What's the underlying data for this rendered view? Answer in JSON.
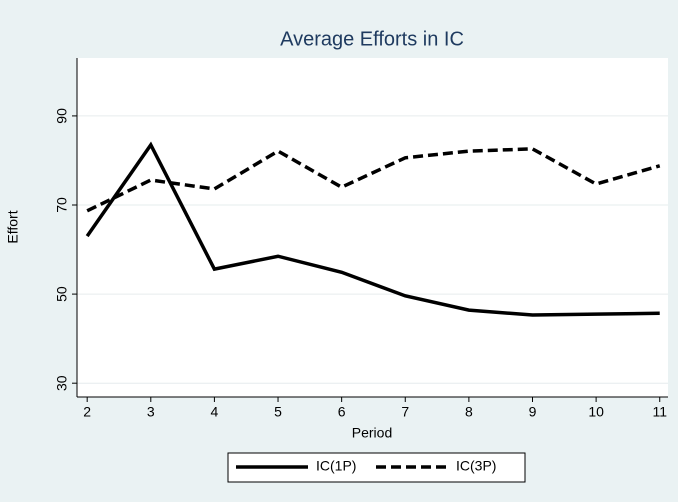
{
  "chart_data": {
    "type": "line",
    "title": "Average Efforts in IC",
    "x_label": "Period",
    "y_label": "Effort",
    "x": [
      2,
      3,
      4,
      5,
      6,
      7,
      8,
      9,
      10,
      11
    ],
    "series": [
      {
        "name": "IC(1P)",
        "color": "#000000",
        "dash": "solid",
        "values": [
          63.0,
          83.5,
          55.6,
          58.5,
          54.9,
          49.6,
          46.4,
          45.3,
          45.5,
          45.7
        ]
      },
      {
        "name": "IC(3P)",
        "color": "#000000",
        "dash": "dashed",
        "values": [
          68.7,
          75.6,
          73.6,
          82.1,
          74.0,
          80.6,
          82.1,
          82.6,
          74.7,
          78.8
        ]
      }
    ],
    "xlim": [
      1.84,
      11.13
    ],
    "xticks": [
      2,
      3,
      4,
      5,
      6,
      7,
      8,
      9,
      10,
      11
    ],
    "ylim": [
      26.9,
      103
    ],
    "yticks": [
      30,
      50,
      70,
      90
    ],
    "grid": true,
    "legend": "bottom"
  }
}
